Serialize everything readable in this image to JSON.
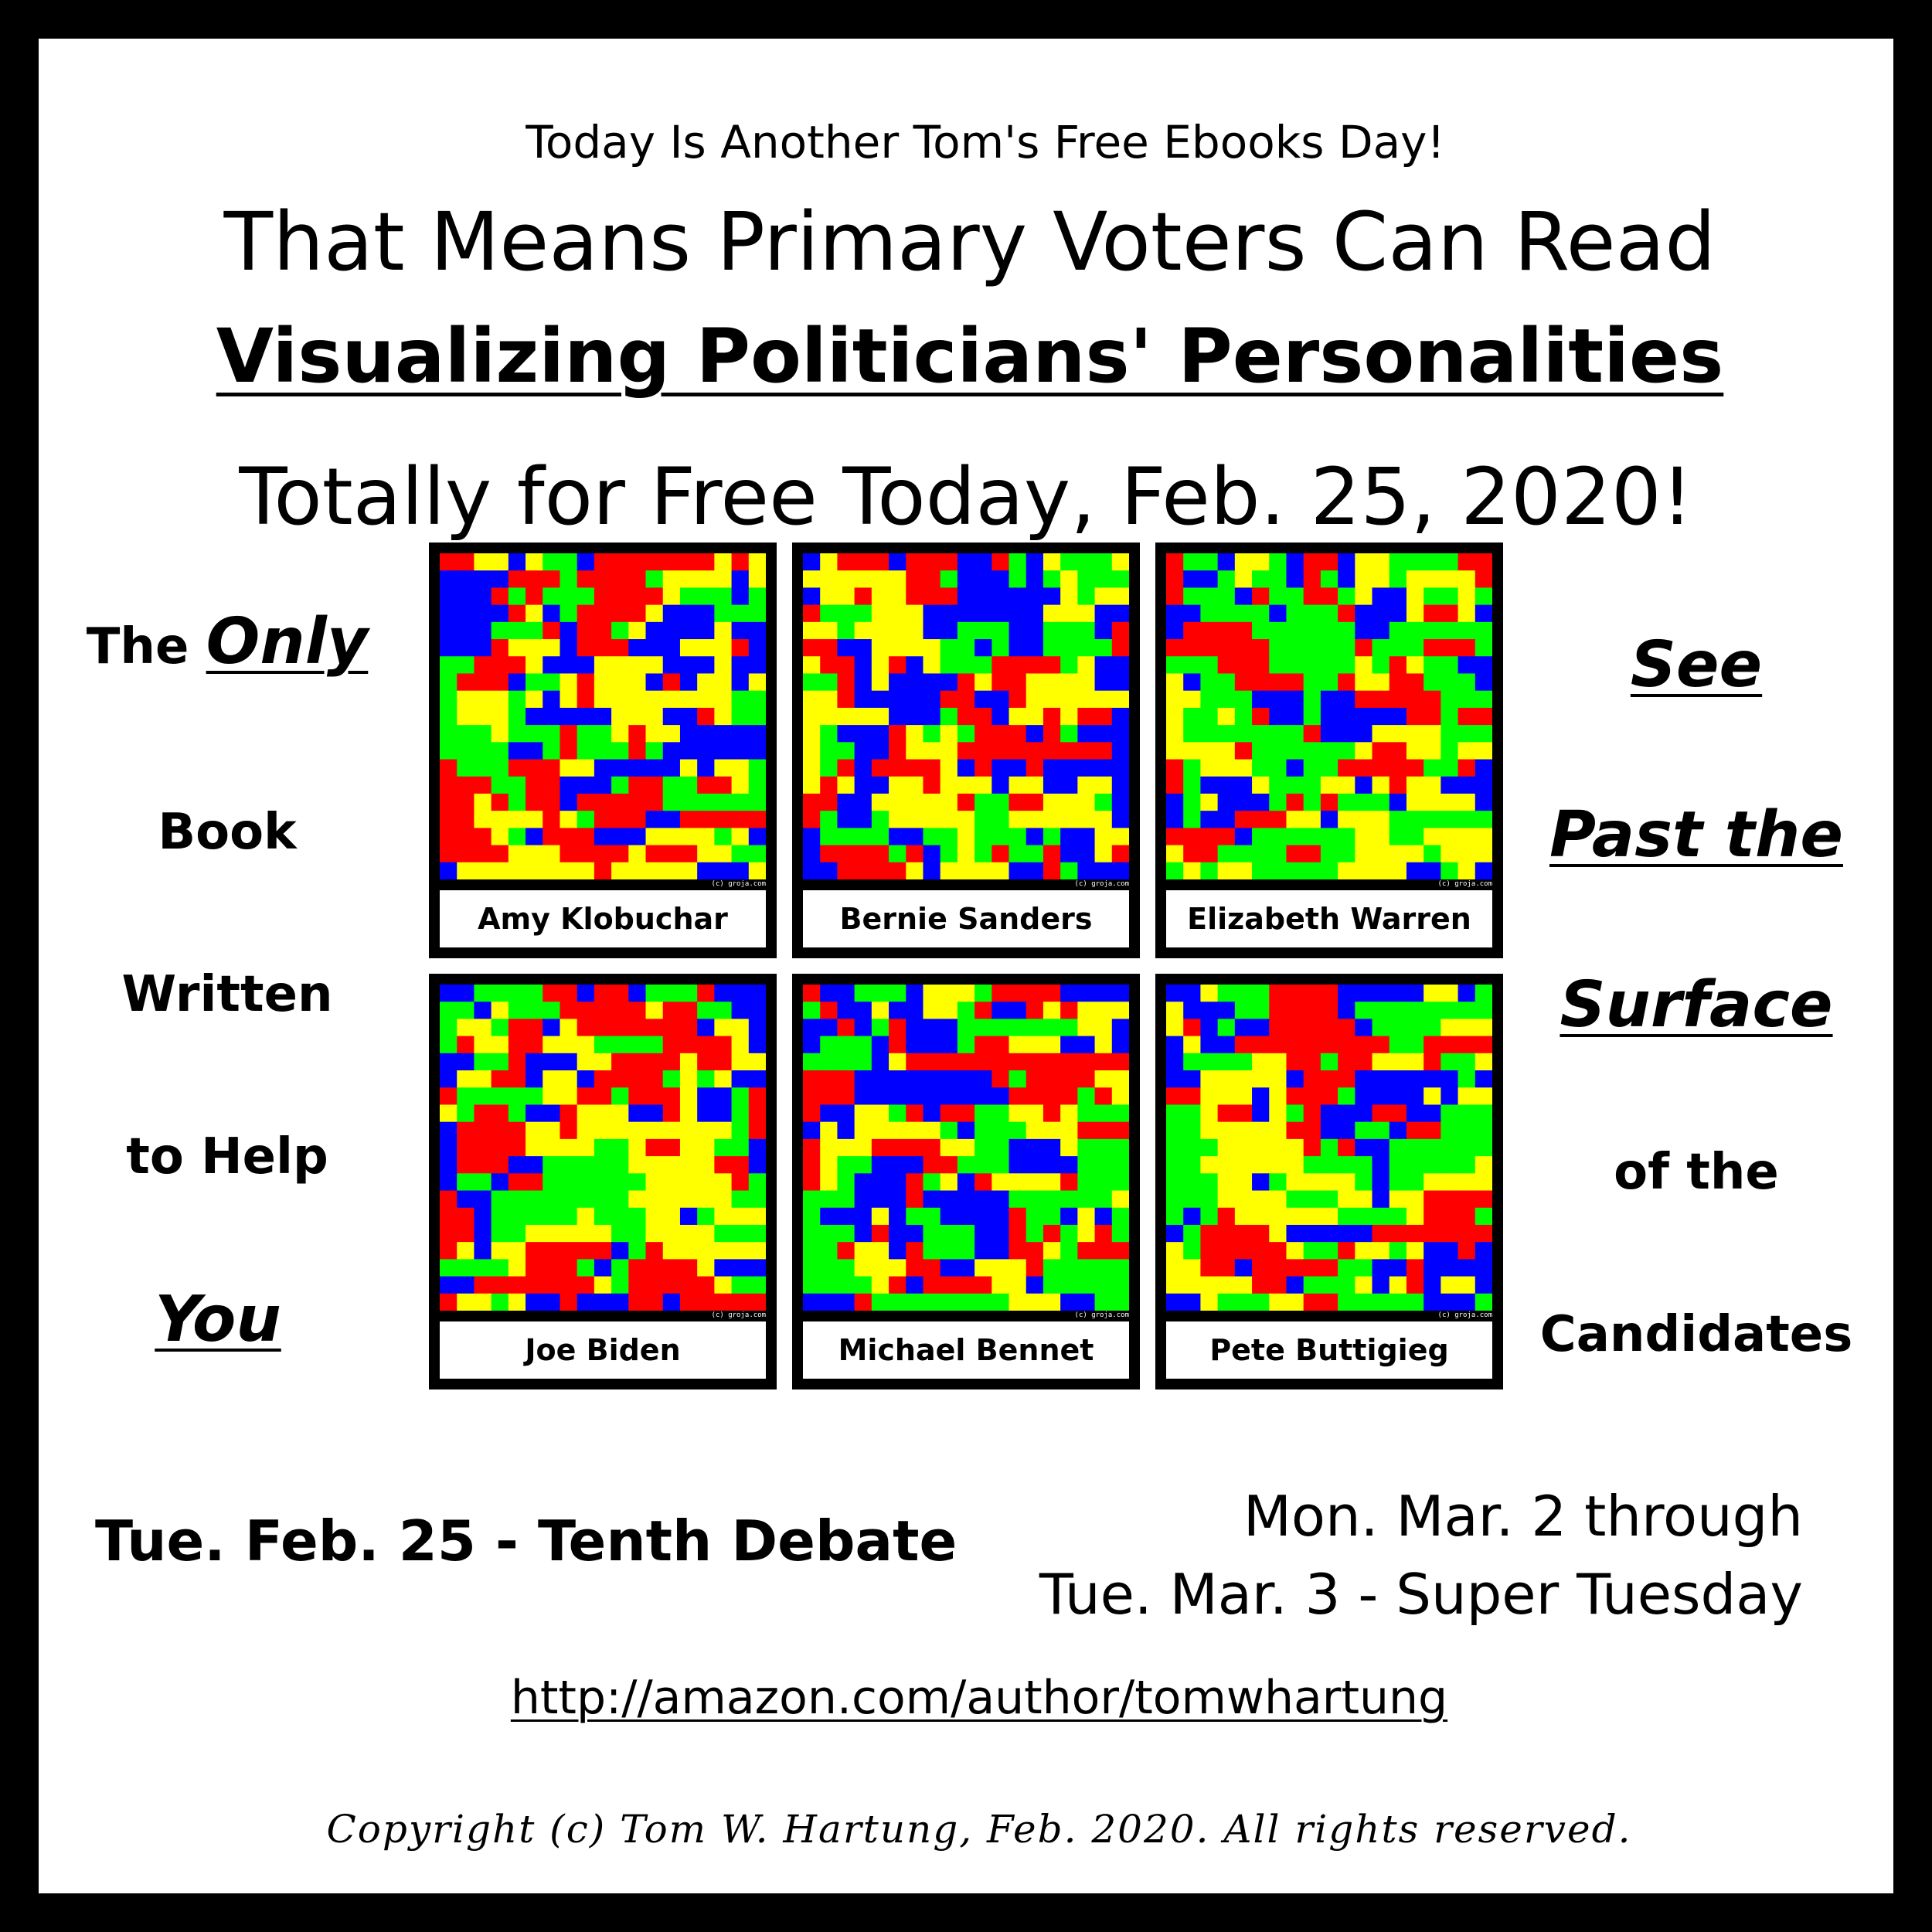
{
  "header": {
    "intro": "Today Is Another Tom's Free Ebooks Day!",
    "means": "That Means Primary Voters Can Read",
    "book_title": "Visualizing Politicians' Personalities",
    "free": "Totally for Free Today, Feb. 25, 2020!"
  },
  "left_column": {
    "line1_prefix": "The",
    "line1_emph": "Only",
    "line2": "Book",
    "line3": "Written",
    "line4": "to Help",
    "line5": "You"
  },
  "right_column": {
    "line1": "See",
    "line2": "Past the",
    "line3": "Surface",
    "line4": "of the",
    "line5": "Candidates"
  },
  "panels": [
    {
      "name": "Amy Klobuchar",
      "credit": "(c) groja.com"
    },
    {
      "name": "Bernie Sanders",
      "credit": "(c) groja.com"
    },
    {
      "name": "Elizabeth Warren",
      "credit": "(c) groja.com"
    },
    {
      "name": "Joe Biden",
      "credit": "(c) groja.com"
    },
    {
      "name": "Michael Bennet",
      "credit": "(c) groja.com"
    },
    {
      "name": "Pete Buttigieg",
      "credit": "(c) groja.com"
    }
  ],
  "pixel_colors": [
    "#ff0000",
    "#00ff00",
    "#0000ff",
    "#ffff00"
  ],
  "dates": {
    "debate": "Tue. Feb. 25 - Tenth Debate",
    "super_line1": "Mon. Mar. 2 through",
    "super_line2": "Tue. Mar. 3 - Super Tuesday"
  },
  "footer": {
    "url": "http://amazon.com/author/tomwhartung",
    "copyright": "Copyright (c) Tom W. Hartung, Feb. 2020.  All rights reserved."
  }
}
